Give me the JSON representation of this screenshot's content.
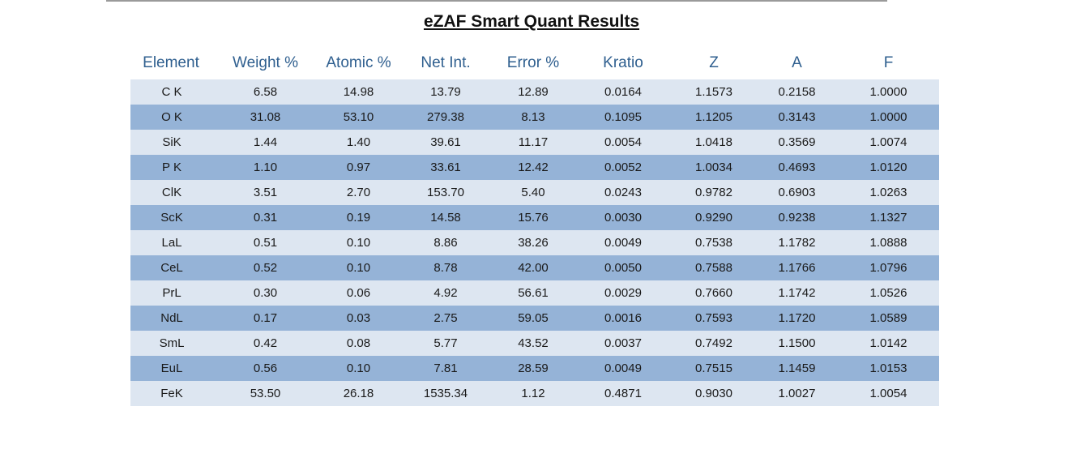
{
  "title": "eZAF Smart Quant Results",
  "headers": [
    "Element",
    "Weight %",
    "Atomic %",
    "Net Int.",
    "Error %",
    "Kratio",
    "Z",
    "A",
    "F"
  ],
  "rows": [
    [
      "C K",
      "6.58",
      "14.98",
      "13.79",
      "12.89",
      "0.0164",
      "1.1573",
      "0.2158",
      "1.0000"
    ],
    [
      "O K",
      "31.08",
      "53.10",
      "279.38",
      "8.13",
      "0.1095",
      "1.1205",
      "0.3143",
      "1.0000"
    ],
    [
      "SiK",
      "1.44",
      "1.40",
      "39.61",
      "11.17",
      "0.0054",
      "1.0418",
      "0.3569",
      "1.0074"
    ],
    [
      "P K",
      "1.10",
      "0.97",
      "33.61",
      "12.42",
      "0.0052",
      "1.0034",
      "0.4693",
      "1.0120"
    ],
    [
      "ClK",
      "3.51",
      "2.70",
      "153.70",
      "5.40",
      "0.0243",
      "0.9782",
      "0.6903",
      "1.0263"
    ],
    [
      "ScK",
      "0.31",
      "0.19",
      "14.58",
      "15.76",
      "0.0030",
      "0.9290",
      "0.9238",
      "1.1327"
    ],
    [
      "LaL",
      "0.51",
      "0.10",
      "8.86",
      "38.26",
      "0.0049",
      "0.7538",
      "1.1782",
      "1.0888"
    ],
    [
      "CeL",
      "0.52",
      "0.10",
      "8.78",
      "42.00",
      "0.0050",
      "0.7588",
      "1.1766",
      "1.0796"
    ],
    [
      "PrL",
      "0.30",
      "0.06",
      "4.92",
      "56.61",
      "0.0029",
      "0.7660",
      "1.1742",
      "1.0526"
    ],
    [
      "NdL",
      "0.17",
      "0.03",
      "2.75",
      "59.05",
      "0.0016",
      "0.7593",
      "1.1720",
      "1.0589"
    ],
    [
      "SmL",
      "0.42",
      "0.08",
      "5.77",
      "43.52",
      "0.0037",
      "0.7492",
      "1.1500",
      "1.0142"
    ],
    [
      "EuL",
      "0.56",
      "0.10",
      "7.81",
      "28.59",
      "0.0049",
      "0.7515",
      "1.1459",
      "1.0153"
    ],
    [
      "FeK",
      "53.50",
      "26.18",
      "1535.34",
      "1.12",
      "0.4871",
      "0.9030",
      "1.0027",
      "1.0054"
    ]
  ],
  "colors": {
    "header_text": "#2f5f8f",
    "row_light": "#dde6f1",
    "row_dark": "#95b3d7"
  }
}
